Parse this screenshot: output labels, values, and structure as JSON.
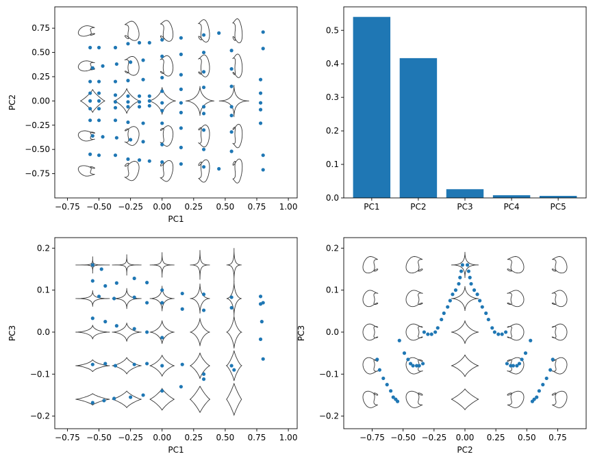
{
  "figure": {
    "background": "#ffffff",
    "marker_color": "#1f77b4",
    "bar_color": "#1f77b4",
    "shape_color": "#333333"
  },
  "chart_data": [
    {
      "id": "pc1_pc2",
      "type": "scatter",
      "xlabel": "PC1",
      "ylabel": "PC2",
      "xlim": [
        -0.85,
        1.07
      ],
      "ylim": [
        -1.0,
        0.97
      ],
      "xticks": [
        -0.75,
        -0.5,
        -0.25,
        0.0,
        0.25,
        0.5,
        0.75,
        1.0
      ],
      "xtick_labels": [
        "−0.75",
        "−0.50",
        "−0.25",
        "0.00",
        "0.25",
        "0.50",
        "0.75",
        "1.00"
      ],
      "yticks": [
        -0.75,
        -0.5,
        -0.25,
        0.0,
        0.25,
        0.5,
        0.75
      ],
      "yticks_labels": [
        "−0.75",
        "−0.50",
        "−0.25",
        "0.00",
        "0.25",
        "0.50",
        "0.75"
      ],
      "points": [
        [
          -0.57,
          0.55
        ],
        [
          -0.5,
          0.55
        ],
        [
          -0.37,
          0.55
        ],
        [
          -0.27,
          0.59
        ],
        [
          -0.18,
          0.6
        ],
        [
          -0.1,
          0.6
        ],
        [
          0.0,
          0.63
        ],
        [
          0.15,
          0.65
        ],
        [
          0.33,
          0.68
        ],
        [
          0.45,
          0.7
        ],
        [
          0.8,
          0.71
        ],
        [
          -0.55,
          0.34
        ],
        [
          -0.47,
          0.36
        ],
        [
          -0.36,
          0.38
        ],
        [
          -0.25,
          0.4
        ],
        [
          -0.15,
          0.42
        ],
        [
          0.0,
          0.46
        ],
        [
          0.15,
          0.48
        ],
        [
          0.33,
          0.5
        ],
        [
          0.55,
          0.52
        ],
        [
          0.8,
          0.54
        ],
        [
          -0.57,
          0.2
        ],
        [
          -0.5,
          0.2
        ],
        [
          -0.37,
          0.2
        ],
        [
          -0.27,
          0.21
        ],
        [
          -0.15,
          0.22
        ],
        [
          0.0,
          0.24
        ],
        [
          0.15,
          0.27
        ],
        [
          0.33,
          0.3
        ],
        [
          0.55,
          0.33
        ],
        [
          0.78,
          0.22
        ],
        [
          -0.57,
          0.08
        ],
        [
          -0.5,
          0.08
        ],
        [
          -0.37,
          0.06
        ],
        [
          -0.27,
          0.05
        ],
        [
          -0.18,
          0.05
        ],
        [
          -0.1,
          0.05
        ],
        [
          0.0,
          0.1
        ],
        [
          0.15,
          0.12
        ],
        [
          0.33,
          0.14
        ],
        [
          0.55,
          0.15
        ],
        [
          0.78,
          0.08
        ],
        [
          -0.57,
          0.0
        ],
        [
          -0.5,
          0.0
        ],
        [
          -0.37,
          -0.01
        ],
        [
          -0.27,
          -0.01
        ],
        [
          -0.18,
          -0.01
        ],
        [
          -0.1,
          0.0
        ],
        [
          0.0,
          -0.02
        ],
        [
          0.15,
          -0.02
        ],
        [
          0.33,
          -0.06
        ],
        [
          0.55,
          -0.06
        ],
        [
          0.78,
          -0.02
        ],
        [
          -0.57,
          -0.08
        ],
        [
          -0.5,
          -0.08
        ],
        [
          -0.37,
          -0.07
        ],
        [
          -0.27,
          -0.06
        ],
        [
          -0.18,
          -0.06
        ],
        [
          -0.1,
          -0.05
        ],
        [
          0.0,
          -0.1
        ],
        [
          0.15,
          -0.12
        ],
        [
          0.33,
          -0.13
        ],
        [
          0.55,
          -0.15
        ],
        [
          0.78,
          -0.09
        ],
        [
          -0.57,
          -0.2
        ],
        [
          -0.5,
          -0.2
        ],
        [
          -0.37,
          -0.2
        ],
        [
          -0.27,
          -0.22
        ],
        [
          -0.15,
          -0.23
        ],
        [
          0.0,
          -0.23
        ],
        [
          0.15,
          -0.28
        ],
        [
          0.33,
          -0.3
        ],
        [
          0.55,
          -0.32
        ],
        [
          0.78,
          -0.23
        ],
        [
          -0.55,
          -0.36
        ],
        [
          -0.47,
          -0.37
        ],
        [
          -0.36,
          -0.38
        ],
        [
          -0.25,
          -0.4
        ],
        [
          -0.15,
          -0.42
        ],
        [
          0.0,
          -0.45
        ],
        [
          0.15,
          -0.48
        ],
        [
          0.33,
          -0.5
        ],
        [
          0.55,
          -0.52
        ],
        [
          0.8,
          -0.56
        ],
        [
          -0.57,
          -0.55
        ],
        [
          -0.5,
          -0.56
        ],
        [
          -0.37,
          -0.56
        ],
        [
          -0.27,
          -0.6
        ],
        [
          -0.18,
          -0.61
        ],
        [
          -0.1,
          -0.62
        ],
        [
          0.0,
          -0.63
        ],
        [
          0.15,
          -0.65
        ],
        [
          0.33,
          -0.68
        ],
        [
          0.45,
          -0.7
        ],
        [
          0.8,
          -0.71
        ]
      ]
    },
    {
      "id": "explained_variance",
      "type": "bar",
      "categories": [
        "PC1",
        "PC2",
        "PC3",
        "PC4",
        "PC5"
      ],
      "values": [
        0.54,
        0.417,
        0.026,
        0.008,
        0.006
      ],
      "ylim": [
        0,
        0.57
      ],
      "yticks": [
        0.0,
        0.1,
        0.2,
        0.3,
        0.4,
        0.5
      ],
      "ytick_labels": [
        "0.0",
        "0.1",
        "0.2",
        "0.3",
        "0.4",
        "0.5"
      ]
    },
    {
      "id": "pc1_pc3",
      "type": "scatter",
      "xlabel": "PC1",
      "ylabel": "PC3",
      "xlim": [
        -0.85,
        1.07
      ],
      "ylim": [
        -0.23,
        0.225
      ],
      "xticks": [
        -0.75,
        -0.5,
        -0.25,
        0.0,
        0.25,
        0.5,
        0.75,
        1.0
      ],
      "xtick_labels": [
        "−0.75",
        "−0.50",
        "−0.25",
        "0.00",
        "0.25",
        "0.50",
        "0.75",
        "1.00"
      ],
      "yticks": [
        -0.2,
        -0.1,
        0.0,
        0.1,
        0.2
      ],
      "ytick_labels": [
        "−0.2",
        "−0.1",
        "0.0",
        "0.1",
        "0.2"
      ],
      "points": [
        [
          -0.55,
          0.16
        ],
        [
          -0.48,
          0.15
        ],
        [
          -0.55,
          0.122
        ],
        [
          -0.45,
          0.11
        ],
        [
          -0.36,
          0.117
        ],
        [
          -0.22,
          0.128
        ],
        [
          -0.12,
          0.118
        ],
        [
          0.0,
          0.1
        ],
        [
          -0.5,
          0.085
        ],
        [
          -0.38,
          0.08
        ],
        [
          -0.22,
          0.083
        ],
        [
          -0.12,
          0.07
        ],
        [
          0.0,
          0.07
        ],
        [
          0.16,
          0.092
        ],
        [
          0.33,
          0.09
        ],
        [
          0.55,
          0.083
        ],
        [
          0.78,
          0.085
        ],
        [
          -0.55,
          0.033
        ],
        [
          -0.45,
          0.025
        ],
        [
          -0.36,
          0.015
        ],
        [
          -0.22,
          0.008
        ],
        [
          -0.12,
          0.0
        ],
        [
          0.0,
          -0.013
        ],
        [
          0.16,
          0.055
        ],
        [
          0.33,
          0.052
        ],
        [
          0.55,
          0.058
        ],
        [
          0.78,
          0.067
        ],
        [
          -0.55,
          -0.077
        ],
        [
          -0.45,
          -0.075
        ],
        [
          -0.37,
          -0.08
        ],
        [
          -0.22,
          -0.077
        ],
        [
          -0.12,
          -0.075
        ],
        [
          0.0,
          -0.08
        ],
        [
          0.16,
          -0.077
        ],
        [
          0.33,
          -0.1
        ],
        [
          0.55,
          -0.08
        ],
        [
          0.78,
          -0.017
        ],
        [
          -0.55,
          -0.168
        ],
        [
          -0.46,
          -0.163
        ],
        [
          -0.38,
          -0.158
        ],
        [
          -0.25,
          -0.155
        ],
        [
          -0.15,
          -0.15
        ],
        [
          0.0,
          -0.14
        ],
        [
          0.15,
          -0.13
        ],
        [
          0.33,
          -0.112
        ],
        [
          0.57,
          -0.09
        ],
        [
          0.8,
          -0.064
        ],
        [
          0.79,
          0.025
        ],
        [
          0.8,
          0.07
        ]
      ]
    },
    {
      "id": "pc2_pc3",
      "type": "scatter",
      "xlabel": "PC2",
      "ylabel": "PC3",
      "xlim": [
        -0.98,
        0.98
      ],
      "ylim": [
        -0.23,
        0.225
      ],
      "xticks": [
        -0.75,
        -0.5,
        -0.25,
        0.0,
        0.25,
        0.5,
        0.75
      ],
      "xtick_labels": [
        "−0.75",
        "−0.50",
        "−0.25",
        "0.00",
        "0.25",
        "0.50",
        "0.75"
      ],
      "yticks": [
        -0.2,
        -0.1,
        0.0,
        0.1,
        0.2
      ],
      "ytick_labels": [
        "−0.2",
        "−0.1",
        "0.0",
        "0.1",
        "0.2"
      ],
      "points": [
        [
          -0.71,
          -0.065
        ],
        [
          -0.69,
          -0.09
        ],
        [
          -0.66,
          -0.11
        ],
        [
          -0.63,
          -0.125
        ],
        [
          -0.6,
          -0.14
        ],
        [
          -0.58,
          -0.155
        ],
        [
          -0.56,
          -0.16
        ],
        [
          -0.545,
          -0.165
        ],
        [
          -0.53,
          -0.02
        ],
        [
          -0.49,
          -0.05
        ],
        [
          -0.46,
          -0.065
        ],
        [
          -0.44,
          -0.075
        ],
        [
          -0.42,
          -0.08
        ],
        [
          -0.39,
          -0.08
        ],
        [
          -0.37,
          -0.08
        ],
        [
          -0.34,
          -0.075
        ],
        [
          -0.33,
          0.0
        ],
        [
          -0.3,
          -0.005
        ],
        [
          -0.27,
          -0.005
        ],
        [
          -0.24,
          0.0
        ],
        [
          -0.22,
          0.01
        ],
        [
          -0.19,
          0.03
        ],
        [
          -0.17,
          0.045
        ],
        [
          -0.14,
          0.06
        ],
        [
          -0.12,
          0.075
        ],
        [
          -0.1,
          0.09
        ],
        [
          -0.075,
          0.1
        ],
        [
          -0.05,
          0.115
        ],
        [
          -0.04,
          0.13
        ],
        [
          -0.03,
          0.145
        ],
        [
          -0.02,
          0.16
        ],
        [
          0.02,
          0.16
        ],
        [
          0.03,
          0.145
        ],
        [
          0.04,
          0.13
        ],
        [
          0.05,
          0.115
        ],
        [
          0.075,
          0.1
        ],
        [
          0.1,
          0.09
        ],
        [
          0.12,
          0.075
        ],
        [
          0.14,
          0.06
        ],
        [
          0.17,
          0.045
        ],
        [
          0.19,
          0.03
        ],
        [
          0.22,
          0.01
        ],
        [
          0.24,
          0.0
        ],
        [
          0.27,
          -0.005
        ],
        [
          0.3,
          -0.005
        ],
        [
          0.33,
          0.0
        ],
        [
          0.34,
          -0.075
        ],
        [
          0.37,
          -0.08
        ],
        [
          0.39,
          -0.08
        ],
        [
          0.42,
          -0.08
        ],
        [
          0.44,
          -0.075
        ],
        [
          0.46,
          -0.065
        ],
        [
          0.49,
          -0.05
        ],
        [
          0.53,
          -0.02
        ],
        [
          0.545,
          -0.165
        ],
        [
          0.56,
          -0.16
        ],
        [
          0.58,
          -0.155
        ],
        [
          0.6,
          -0.14
        ],
        [
          0.63,
          -0.125
        ],
        [
          0.66,
          -0.11
        ],
        [
          0.69,
          -0.09
        ],
        [
          0.71,
          -0.065
        ]
      ]
    }
  ]
}
